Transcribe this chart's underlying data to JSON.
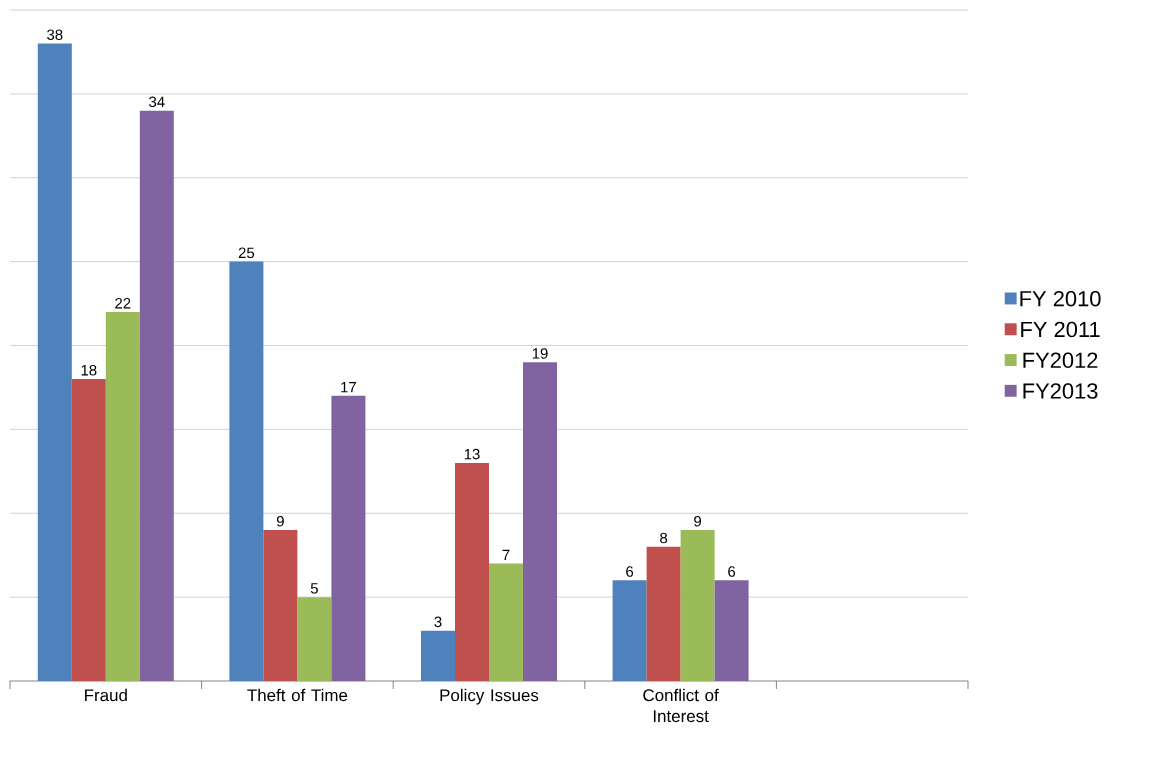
{
  "chart_data": {
    "type": "bar",
    "categories": [
      "Fraud",
      "Theft of Time",
      "Policy Issues",
      "Conflict of Interest",
      null
    ],
    "series": [
      {
        "name": "FY 2010",
        "color": "#4f81bd",
        "values": [
          38,
          25,
          3,
          6,
          null
        ]
      },
      {
        "name": "FY 2011",
        "color": "#c0504d",
        "values": [
          18,
          9,
          13,
          8,
          null
        ]
      },
      {
        "name": "FY2012",
        "color": "#9bbb59",
        "values": [
          22,
          5,
          7,
          9,
          null
        ]
      },
      {
        "name": "FY2013",
        "color": "#8064a2",
        "values": [
          34,
          17,
          19,
          6,
          null
        ]
      }
    ],
    "ylim": [
      0,
      40
    ],
    "yticks": [
      {
        "value": 5,
        "label": null
      },
      {
        "value": 10,
        "label": null
      },
      {
        "value": 15,
        "label": null
      },
      {
        "value": 20,
        "label": null
      },
      {
        "value": 25,
        "label": null
      },
      {
        "value": 30,
        "label": null
      },
      {
        "value": 35,
        "label": null
      },
      {
        "value": 40,
        "label": null
      }
    ],
    "tick_labels": "x",
    "grid": "y",
    "legend": "right",
    "data_labels": true
  }
}
